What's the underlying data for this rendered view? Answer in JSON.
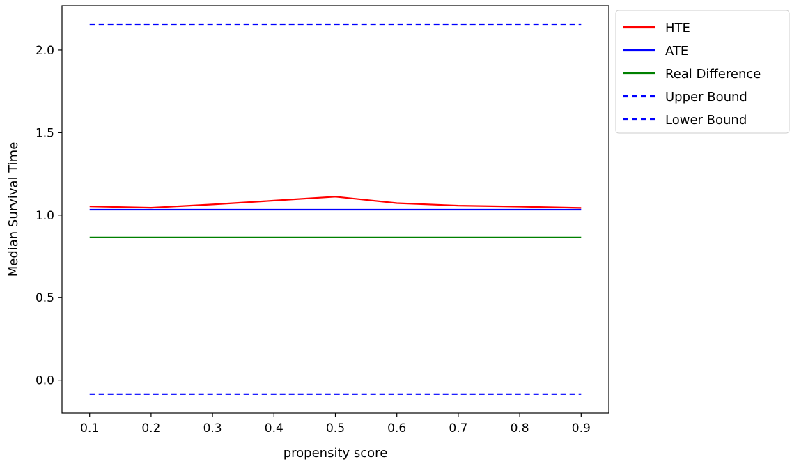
{
  "chart_data": {
    "type": "line",
    "title": "",
    "xlabel": "propensity score",
    "ylabel": "Median Survival Time",
    "x": [
      0.1,
      0.2,
      0.3,
      0.4,
      0.5,
      0.6,
      0.7,
      0.8,
      0.9
    ],
    "xlim": [
      0.055,
      0.945
    ],
    "ylim": [
      -0.2,
      2.27
    ],
    "xticks": [
      0.1,
      0.2,
      0.3,
      0.4,
      0.5,
      0.6,
      0.7,
      0.8,
      0.9
    ],
    "xtick_labels": [
      "0.1",
      "0.2",
      "0.3",
      "0.4",
      "0.5",
      "0.6",
      "0.7",
      "0.8",
      "0.9"
    ],
    "yticks": [
      0.0,
      0.5,
      1.0,
      1.5,
      2.0
    ],
    "ytick_labels": [
      "0.0",
      "0.5",
      "1.0",
      "1.5",
      "2.0"
    ],
    "grid": false,
    "legend_placement": "outside-upper-right",
    "series": [
      {
        "name": "HTE",
        "color": "#ff0000",
        "style": "solid",
        "values": [
          1.053,
          1.045,
          1.065,
          1.088,
          1.112,
          1.073,
          1.058,
          1.052,
          1.044
        ]
      },
      {
        "name": "ATE",
        "color": "#0000ff",
        "style": "solid",
        "values": [
          1.033,
          1.033,
          1.033,
          1.033,
          1.033,
          1.033,
          1.033,
          1.033,
          1.033
        ]
      },
      {
        "name": "Real Difference",
        "color": "#008000",
        "style": "solid",
        "values": [
          0.865,
          0.865,
          0.865,
          0.865,
          0.865,
          0.865,
          0.865,
          0.865,
          0.865
        ]
      },
      {
        "name": "Upper Bound",
        "color": "#0000ff",
        "style": "dashed",
        "values": [
          2.156,
          2.156,
          2.156,
          2.156,
          2.156,
          2.156,
          2.156,
          2.156,
          2.156
        ]
      },
      {
        "name": "Lower Bound",
        "color": "#0000ff",
        "style": "dashed",
        "values": [
          -0.085,
          -0.085,
          -0.085,
          -0.085,
          -0.085,
          -0.085,
          -0.085,
          -0.085,
          -0.085
        ]
      }
    ]
  }
}
